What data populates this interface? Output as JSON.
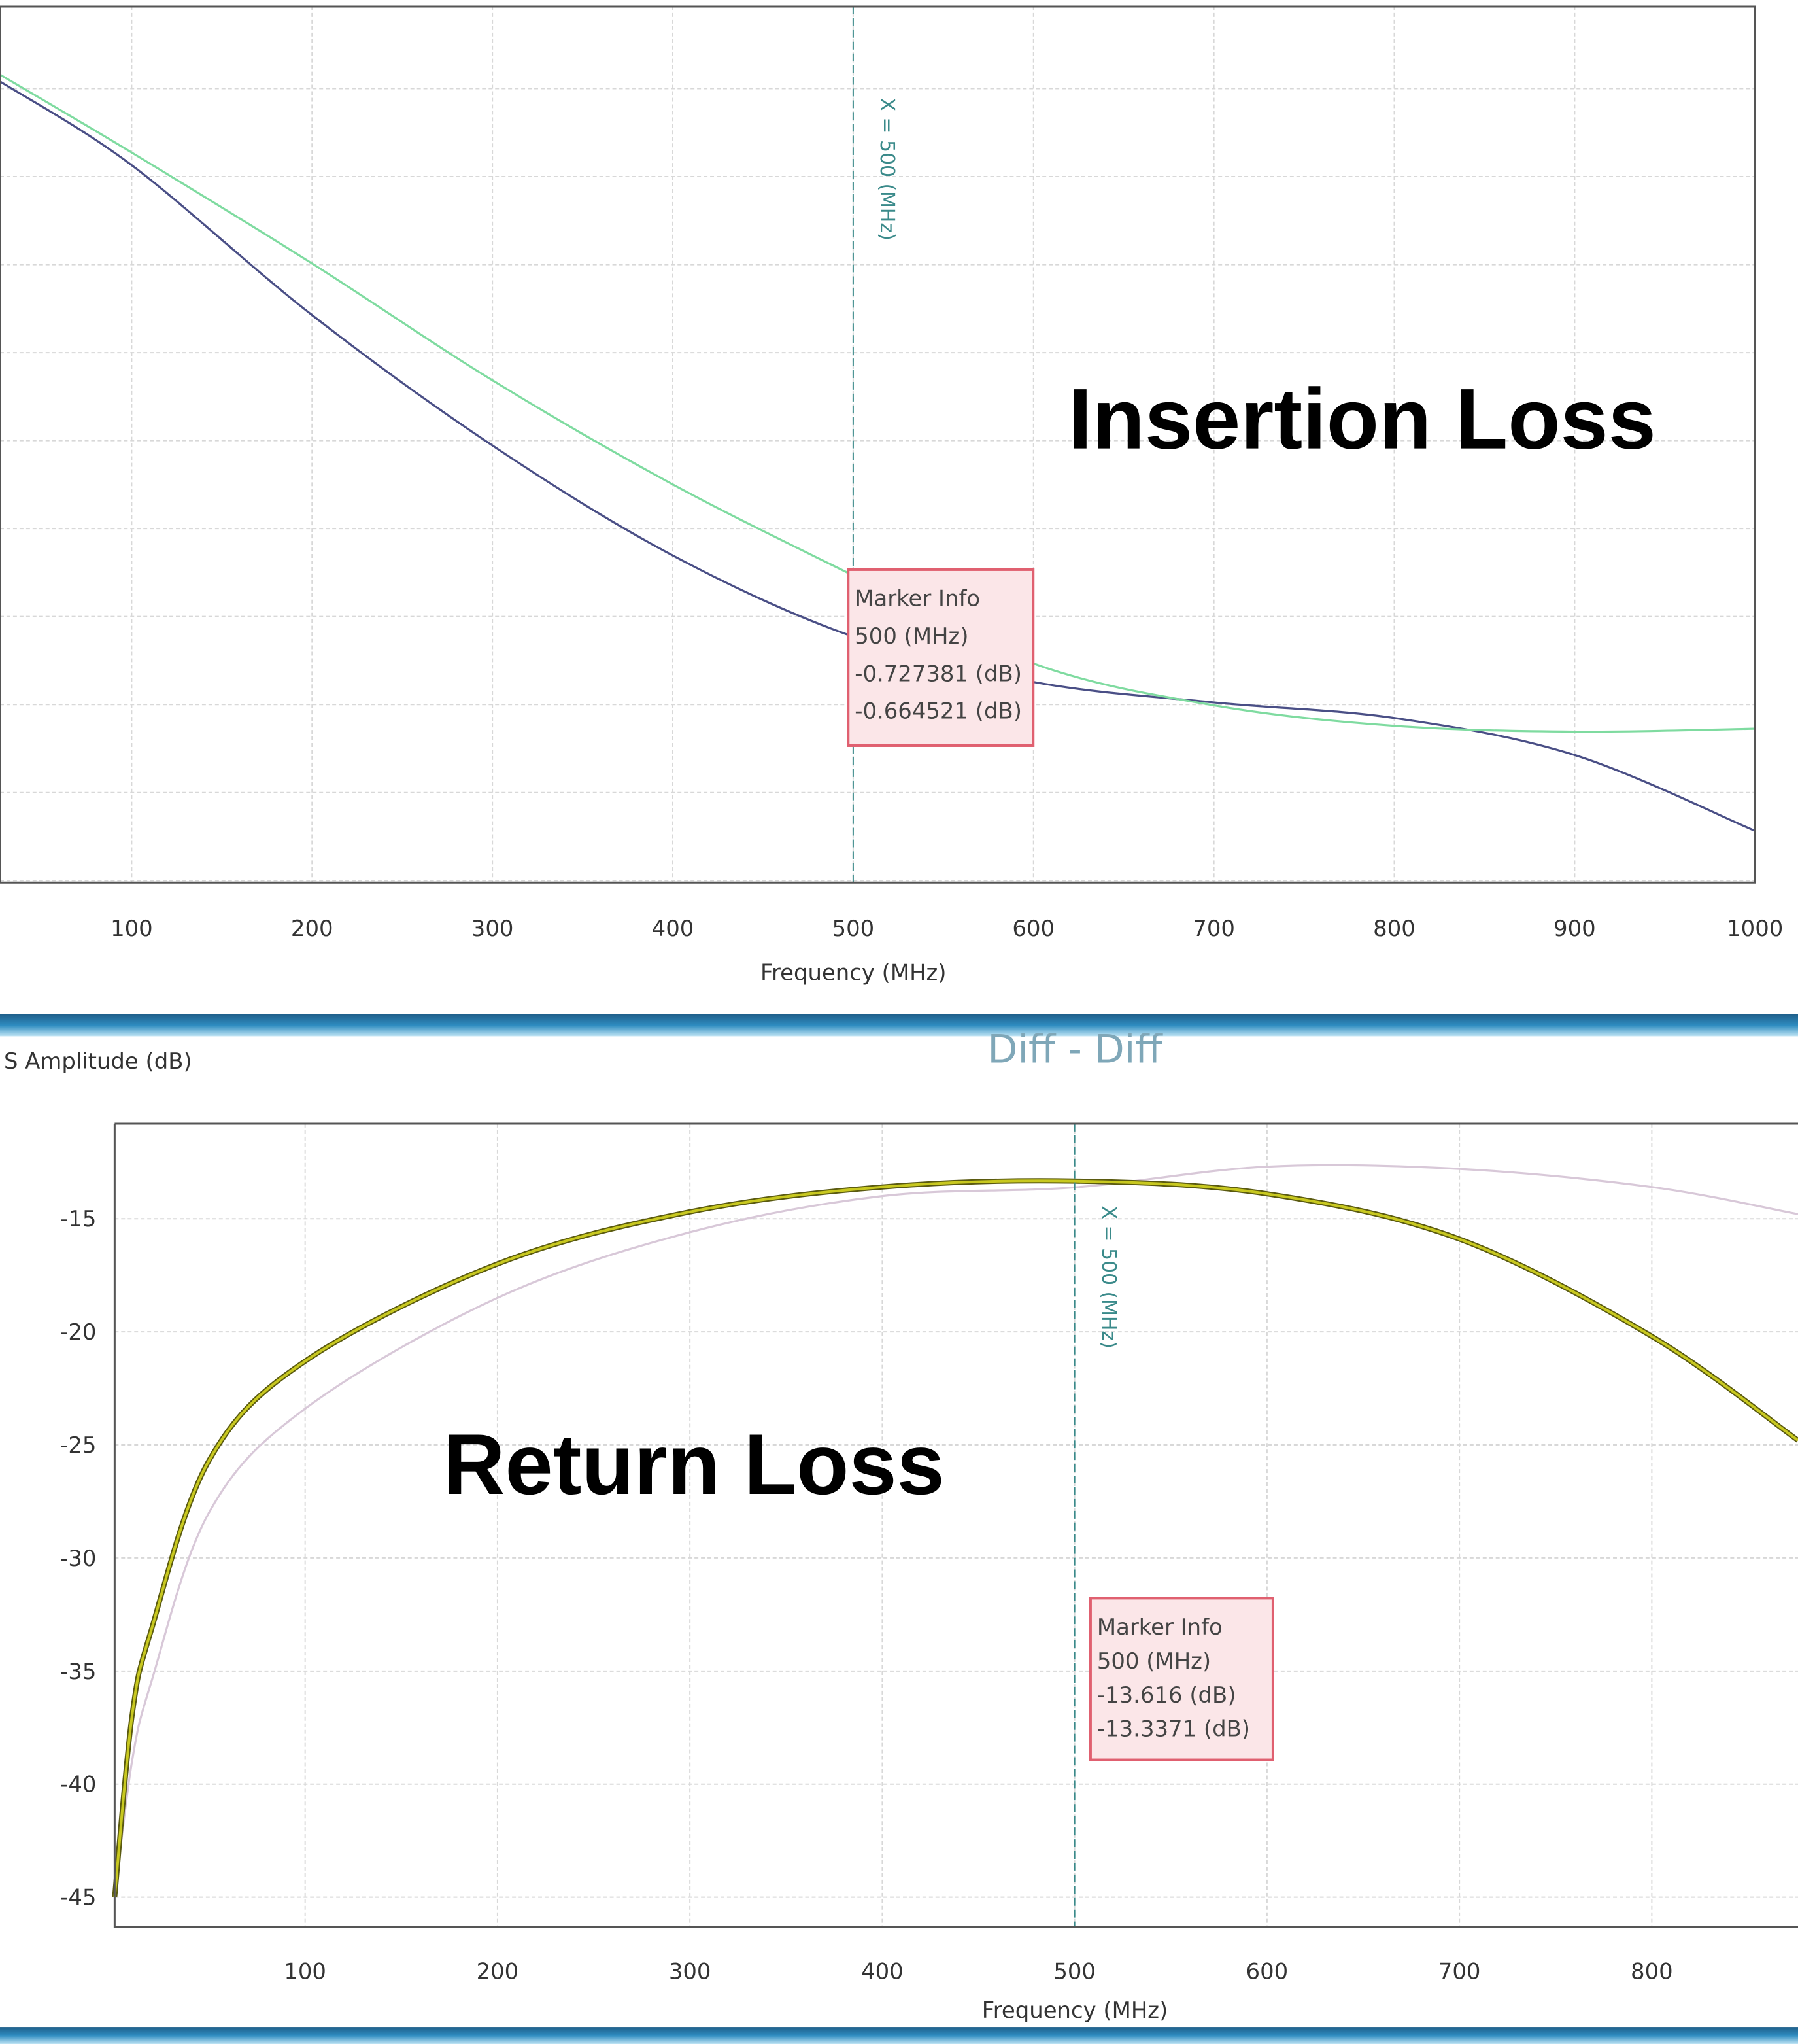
{
  "chart_data": [
    {
      "type": "line",
      "title": "Insertion Loss",
      "xlabel": "Frequency (MHz)",
      "ylabel": "",
      "xlim": [
        27,
        1000
      ],
      "ylim": [
        -0.98,
        -0.08
      ],
      "x_ticks": [
        "100",
        "200",
        "300",
        "400",
        "500",
        "600",
        "700",
        "800",
        "900",
        "1000"
      ],
      "grid": true,
      "series": [
        {
          "color": "#4a4f86",
          "x": [
            27,
            100,
            200,
            300,
            400,
            500,
            600,
            700,
            800,
            900,
            1000
          ],
          "y": [
            -0.157,
            -0.243,
            -0.397,
            -0.531,
            -0.644,
            -0.727381,
            -0.774,
            -0.795,
            -0.811,
            -0.849,
            -0.927
          ]
        },
        {
          "color": "#7fdba0",
          "x": [
            27,
            100,
            200,
            300,
            400,
            500,
            600,
            700,
            800,
            900,
            1000
          ],
          "y": [
            -0.15,
            -0.23,
            -0.344,
            -0.464,
            -0.571,
            -0.664521,
            -0.755,
            -0.798,
            -0.819,
            -0.825,
            -0.822
          ]
        }
      ],
      "marker": {
        "x_label": "X = 500 (MHz)",
        "x": 500,
        "info": [
          "Marker Info",
          "500 (MHz)",
          "-0.727381 (dB)",
          "-0.664521 (dB)"
        ]
      }
    },
    {
      "type": "line",
      "title": "Return Loss",
      "subtitle": "Diff - Diff",
      "xlabel": "Frequency (MHz)",
      "ylabel": "S Amplitude (dB)",
      "xlim": [
        1,
        876
      ],
      "ylim": [
        -46.3,
        -10.8
      ],
      "x_ticks": [
        "100",
        "200",
        "300",
        "400",
        "500",
        "600",
        "700",
        "800"
      ],
      "y_ticks": [
        "-15",
        "-20",
        "-25",
        "-30",
        "-35",
        "-40",
        "-45"
      ],
      "grid": true,
      "series": [
        {
          "color": "#d8c8d8",
          "x": [
            1,
            10,
            20,
            50,
            100,
            200,
            300,
            400,
            500,
            600,
            700,
            800,
            876
          ],
          "y": [
            -45.0,
            -39.0,
            -35.5,
            -28.0,
            -23.4,
            -18.5,
            -15.6,
            -14.0,
            -13.616,
            -12.7,
            -12.8,
            -13.6,
            -14.8
          ]
        },
        {
          "color": "#c8c820",
          "x": [
            1,
            10,
            20,
            50,
            100,
            200,
            300,
            400,
            500,
            600,
            700,
            800,
            876
          ],
          "y": [
            -45.0,
            -37.0,
            -33.2,
            -25.7,
            -21.3,
            -17.0,
            -14.7,
            -13.6,
            -13.3371,
            -13.9,
            -15.9,
            -20.2,
            -24.8
          ]
        }
      ],
      "marker": {
        "x_label": "X = 500 (MHz)",
        "x": 500,
        "info": [
          "Marker Info",
          "500 (MHz)",
          "-13.616 (dB)",
          "-13.3371 (dB)"
        ]
      }
    }
  ],
  "colors": {
    "band": "#2a7fb0",
    "grid": "#d8d8d8",
    "marker_box": "#e06070",
    "marker_fill": "#fbe6e8"
  }
}
